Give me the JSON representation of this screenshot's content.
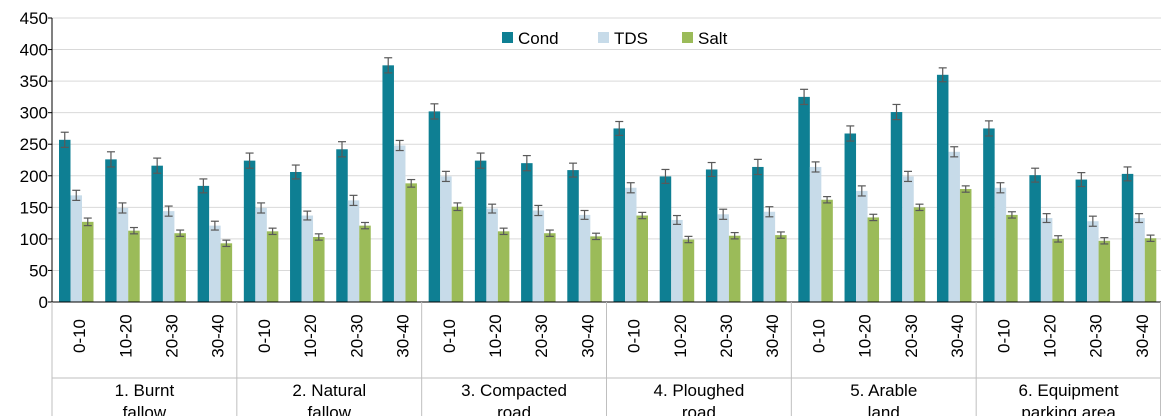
{
  "chart_data": {
    "type": "bar",
    "title": "",
    "xlabel": "",
    "ylabel": "",
    "ylim": [
      0,
      450
    ],
    "yticks": [
      0,
      50,
      100,
      150,
      200,
      250,
      300,
      350,
      400,
      450
    ],
    "grid": true,
    "legend_position": "top-center",
    "groups": [
      {
        "lines": [
          "1. Burnt",
          "fallow"
        ]
      },
      {
        "lines": [
          "2. Natural",
          "fallow"
        ]
      },
      {
        "lines": [
          "3. Compacted",
          "road"
        ]
      },
      {
        "lines": [
          "4. Ploughed",
          "road"
        ]
      },
      {
        "lines": [
          "5. Arable",
          "land"
        ]
      },
      {
        "lines": [
          "6. Equipment",
          "parking area"
        ]
      }
    ],
    "depths": [
      "0-10",
      "10-20",
      "20-30",
      "30-40"
    ],
    "series": [
      {
        "name": "Cond",
        "color": "#0e7f93",
        "values": [
          257,
          226,
          216,
          184,
          224,
          206,
          242,
          375,
          302,
          224,
          220,
          209,
          275,
          199,
          210,
          214,
          325,
          267,
          301,
          360,
          275,
          201,
          194,
          203
        ],
        "errors": [
          12,
          12,
          12,
          11,
          12,
          11,
          12,
          12,
          12,
          12,
          12,
          11,
          11,
          11,
          11,
          12,
          12,
          12,
          12,
          11,
          12,
          11,
          11,
          11
        ]
      },
      {
        "name": "TDS",
        "color": "#c7dbe9",
        "values": [
          169,
          149,
          144,
          121,
          149,
          137,
          161,
          248,
          199,
          148,
          145,
          138,
          181,
          130,
          139,
          143,
          214,
          176,
          199,
          238,
          181,
          133,
          128,
          133
        ],
        "errors": [
          8,
          8,
          8,
          7,
          8,
          7,
          8,
          8,
          8,
          7,
          8,
          7,
          8,
          7,
          8,
          8,
          8,
          8,
          8,
          8,
          8,
          7,
          8,
          7
        ]
      },
      {
        "name": "Salt",
        "color": "#9bbb59",
        "values": [
          127,
          113,
          109,
          93,
          112,
          103,
          121,
          188,
          151,
          112,
          109,
          104,
          137,
          99,
          105,
          106,
          162,
          134,
          150,
          179,
          138,
          100,
          97,
          101
        ],
        "errors": [
          6,
          5,
          5,
          5,
          5,
          5,
          5,
          6,
          6,
          5,
          5,
          5,
          5,
          5,
          5,
          5,
          5,
          5,
          5,
          5,
          5,
          5,
          5,
          5
        ]
      }
    ]
  }
}
